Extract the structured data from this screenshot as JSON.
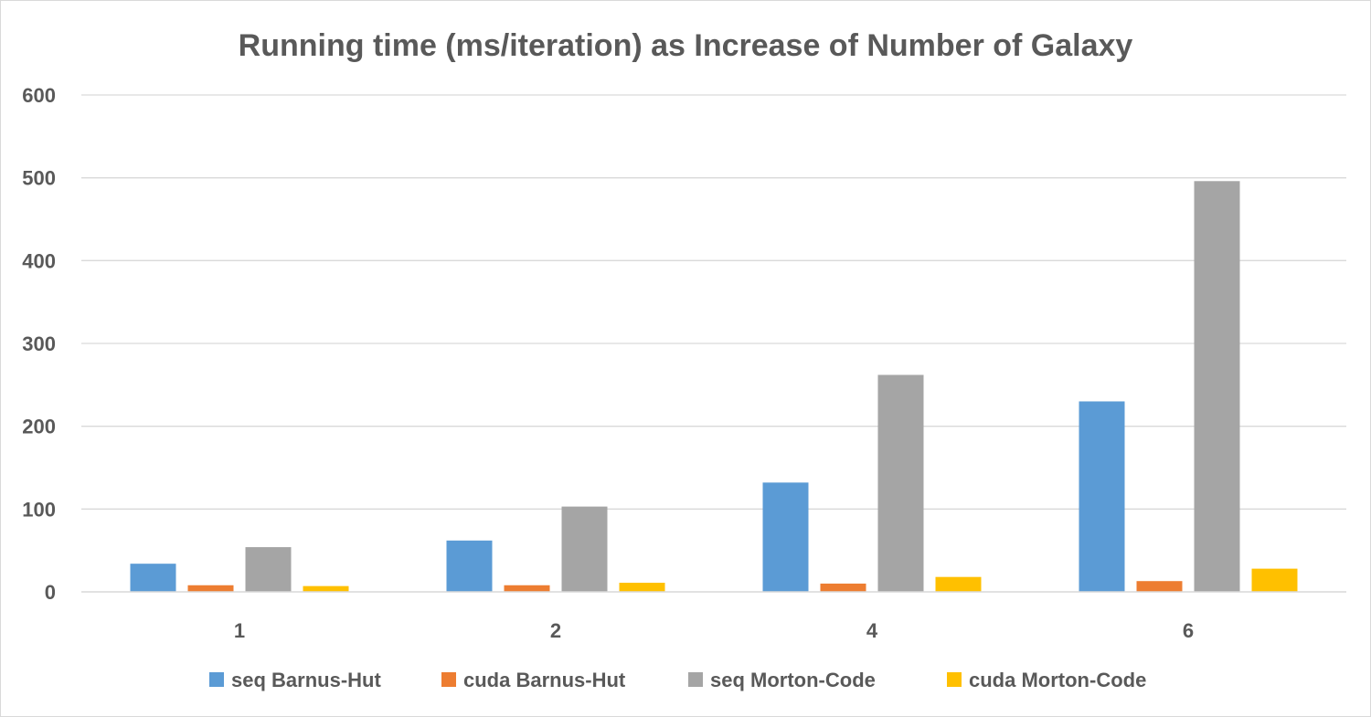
{
  "chart_data": {
    "type": "bar",
    "title": "Running time (ms/iteration) as Increase of Number of Galaxy",
    "xlabel": "",
    "ylabel": "",
    "categories": [
      "1",
      "2",
      "4",
      "6"
    ],
    "ylim": [
      0,
      600
    ],
    "yticks": [
      "0",
      "100",
      "200",
      "300",
      "400",
      "500",
      "600"
    ],
    "ytick_values": [
      0,
      100,
      200,
      300,
      400,
      500,
      600
    ],
    "grid": true,
    "legend_position": "bottom",
    "series": [
      {
        "name": "seq Barnus-Hut",
        "color": "#5b9bd5",
        "values": [
          34,
          62,
          132,
          230
        ]
      },
      {
        "name": "cuda Barnus-Hut",
        "color": "#ed7d31",
        "values": [
          8,
          8,
          10,
          13
        ]
      },
      {
        "name": "seq Morton-Code",
        "color": "#a5a5a5",
        "values": [
          54,
          103,
          262,
          496
        ]
      },
      {
        "name": "cuda Morton-Code",
        "color": "#ffc000",
        "values": [
          7,
          11,
          18,
          28
        ]
      }
    ]
  }
}
